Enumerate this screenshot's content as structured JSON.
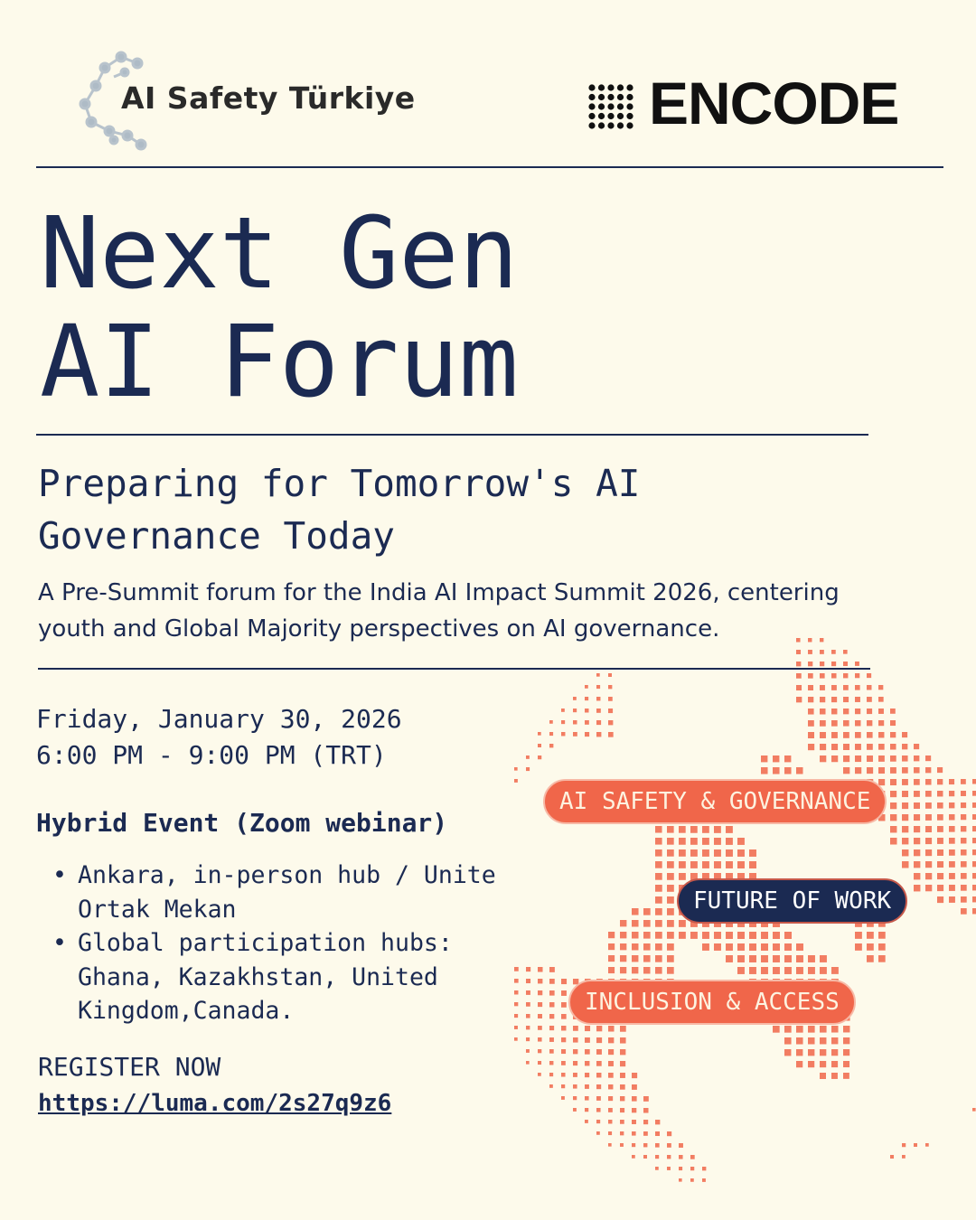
{
  "logos": {
    "left": "AI Safety Türkiye",
    "right": "ENCODE"
  },
  "title": {
    "line1": "Next Gen",
    "line2": "AI Forum"
  },
  "subtitle": {
    "line1": "Preparing for Tomorrow's AI",
    "line2": "Governance Today"
  },
  "description": "A Pre-Summit forum for the India AI Impact Summit 2026, centering youth and Global Majority perspectives on AI governance.",
  "event": {
    "date": "Friday, January 30, 2026",
    "time": "6:00 PM - 9:00 PM (TRT)",
    "format": "Hybrid Event (Zoom webinar)",
    "locations": [
      "Ankara, in-person hub / Unite\nOrtak Mekan",
      "Global participation hubs:\nGhana, Kazakhstan, United\nKingdom,Canada."
    ]
  },
  "register": {
    "label": "REGISTER NOW",
    "url": "https://luma.com/2s27q9z6"
  },
  "topics": [
    "AI SAFETY & GOVERNANCE",
    "FUTURE OF WORK",
    "INCLUSION & ACCESS"
  ],
  "colors": {
    "background": "#fdfaeb",
    "navy": "#1b2a52",
    "accent": "#f0664a"
  },
  "icons": {
    "globe": "dotted-globe-graphic",
    "logo_left": "molecule-network-icon",
    "logo_right": "dot-grid-icon"
  }
}
